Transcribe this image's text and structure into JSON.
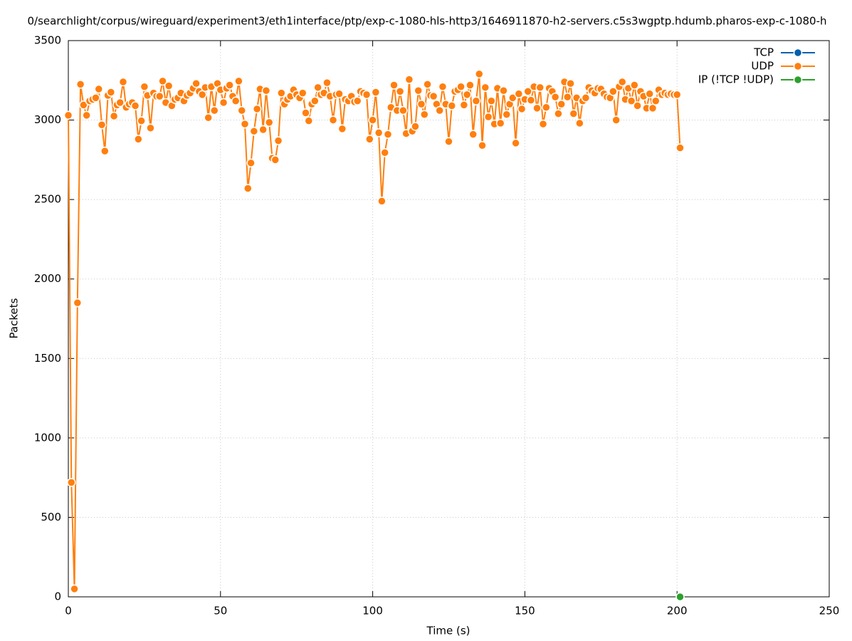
{
  "chart_data": {
    "type": "line",
    "title": "0/searchlight/corpus/wireguard/experiment3/eth1interface/ptp/exp-c-1080-hls-http3/1646911870-h2-servers.c5s3wgptp.hdumb.pharos-exp-c-1080-h",
    "xlabel": "Time (s)",
    "ylabel": "Packets",
    "xlim": [
      0,
      250
    ],
    "ylim": [
      0,
      3500
    ],
    "xticks": [
      0,
      50,
      100,
      150,
      200,
      250
    ],
    "yticks": [
      0,
      500,
      1000,
      1500,
      2000,
      2500,
      3000,
      3500
    ],
    "grid": true,
    "legend": "top-right",
    "series": [
      {
        "name": "TCP",
        "color": "#0060ad",
        "x": [],
        "values": []
      },
      {
        "name": "UDP",
        "color": "#ff7f0e",
        "x": [
          0,
          1,
          2,
          3,
          4,
          5,
          6,
          7,
          8,
          9,
          10,
          11,
          12,
          13,
          14,
          15,
          16,
          17,
          18,
          19,
          20,
          21,
          22,
          23,
          24,
          25,
          26,
          27,
          28,
          29,
          30,
          31,
          32,
          33,
          34,
          35,
          36,
          37,
          38,
          39,
          40,
          41,
          42,
          43,
          44,
          45,
          46,
          47,
          48,
          49,
          50,
          51,
          52,
          53,
          54,
          55,
          56,
          57,
          58,
          59,
          60,
          61,
          62,
          63,
          64,
          65,
          66,
          67,
          68,
          69,
          70,
          71,
          72,
          73,
          74,
          75,
          76,
          77,
          78,
          79,
          80,
          81,
          82,
          83,
          84,
          85,
          86,
          87,
          88,
          89,
          90,
          91,
          92,
          93,
          94,
          95,
          96,
          97,
          98,
          99,
          100,
          101,
          102,
          103,
          104,
          105,
          106,
          107,
          108,
          109,
          110,
          111,
          112,
          113,
          114,
          115,
          116,
          117,
          118,
          119,
          120,
          121,
          122,
          123,
          124,
          125,
          126,
          127,
          128,
          129,
          130,
          131,
          132,
          133,
          134,
          135,
          136,
          137,
          138,
          139,
          140,
          141,
          142,
          143,
          144,
          145,
          146,
          147,
          148,
          149,
          150,
          151,
          152,
          153,
          154,
          155,
          156,
          157,
          158,
          159,
          160,
          161,
          162,
          163,
          164,
          165,
          166,
          167,
          168,
          169,
          170,
          171,
          172,
          173,
          174,
          175,
          176,
          177,
          178,
          179,
          180,
          181,
          182,
          183,
          184,
          185,
          186,
          187,
          188,
          189,
          190,
          191,
          192,
          193,
          194,
          195,
          196,
          197,
          198,
          199,
          200,
          201
        ],
        "values": [
          3030,
          720,
          50,
          1850,
          3225,
          3095,
          3030,
          3120,
          3130,
          3140,
          3195,
          2970,
          2805,
          3155,
          3175,
          3025,
          3095,
          3110,
          3240,
          3080,
          3100,
          3110,
          3090,
          2880,
          2995,
          3210,
          3155,
          2950,
          3170,
          3150,
          3150,
          3245,
          3110,
          3215,
          3090,
          3130,
          3140,
          3170,
          3120,
          3155,
          3170,
          3200,
          3230,
          3180,
          3160,
          3205,
          3015,
          3210,
          3060,
          3230,
          3190,
          3110,
          3200,
          3220,
          3150,
          3120,
          3245,
          3060,
          2975,
          2570,
          2730,
          2930,
          3070,
          3195,
          2940,
          3185,
          2985,
          2760,
          2750,
          2870,
          3170,
          3100,
          3130,
          3150,
          3190,
          3160,
          3140,
          3170,
          3045,
          2995,
          3100,
          3120,
          3205,
          3160,
          3170,
          3235,
          3150,
          3000,
          3160,
          3165,
          2945,
          3130,
          3120,
          3150,
          3115,
          3120,
          3180,
          3170,
          3160,
          2880,
          3000,
          3175,
          2920,
          2490,
          2795,
          2910,
          3080,
          3220,
          3060,
          3180,
          3060,
          2915,
          3255,
          2930,
          2960,
          3185,
          3100,
          3035,
          3225,
          3155,
          3150,
          3100,
          3060,
          3210,
          3100,
          2865,
          3090,
          3180,
          3190,
          3210,
          3095,
          3160,
          3220,
          2910,
          3120,
          3290,
          2840,
          3205,
          3020,
          3120,
          2975,
          3200,
          2980,
          3185,
          3035,
          3100,
          3140,
          2855,
          3165,
          3070,
          3130,
          3180,
          3125,
          3210,
          3075,
          3205,
          2975,
          3080,
          3200,
          3180,
          3145,
          3040,
          3100,
          3240,
          3145,
          3230,
          3040,
          3140,
          2980,
          3120,
          3140,
          3205,
          3185,
          3170,
          3200,
          3195,
          3165,
          3145,
          3140,
          3180,
          3000,
          3210,
          3240,
          3130,
          3200,
          3120,
          3220,
          3090,
          3180,
          3150,
          3075,
          3165,
          3075,
          3120,
          3190,
          3160,
          3170,
          3160,
          3165,
          3160,
          3160,
          2825
        ]
      },
      {
        "name": "IP (!TCP  !UDP)",
        "color": "#2ca02c",
        "x": [
          201
        ],
        "values": [
          0
        ]
      }
    ]
  }
}
